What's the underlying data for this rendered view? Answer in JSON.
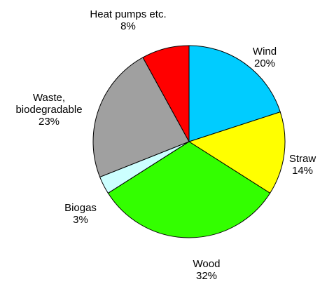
{
  "chart_data": {
    "type": "pie",
    "categories": [
      "Wind",
      "Straw",
      "Wood",
      "Biogas",
      "Waste, biodegradable",
      "Heat pumps etc."
    ],
    "values": [
      20,
      14,
      32,
      3,
      23,
      8
    ],
    "value_labels": [
      "20%",
      "14%",
      "32%",
      "3%",
      "23%",
      "8%"
    ],
    "colors": [
      "#00ccff",
      "#ffff00",
      "#33ff00",
      "#ccffff",
      "#a0a0a0",
      "#ff0000"
    ]
  }
}
